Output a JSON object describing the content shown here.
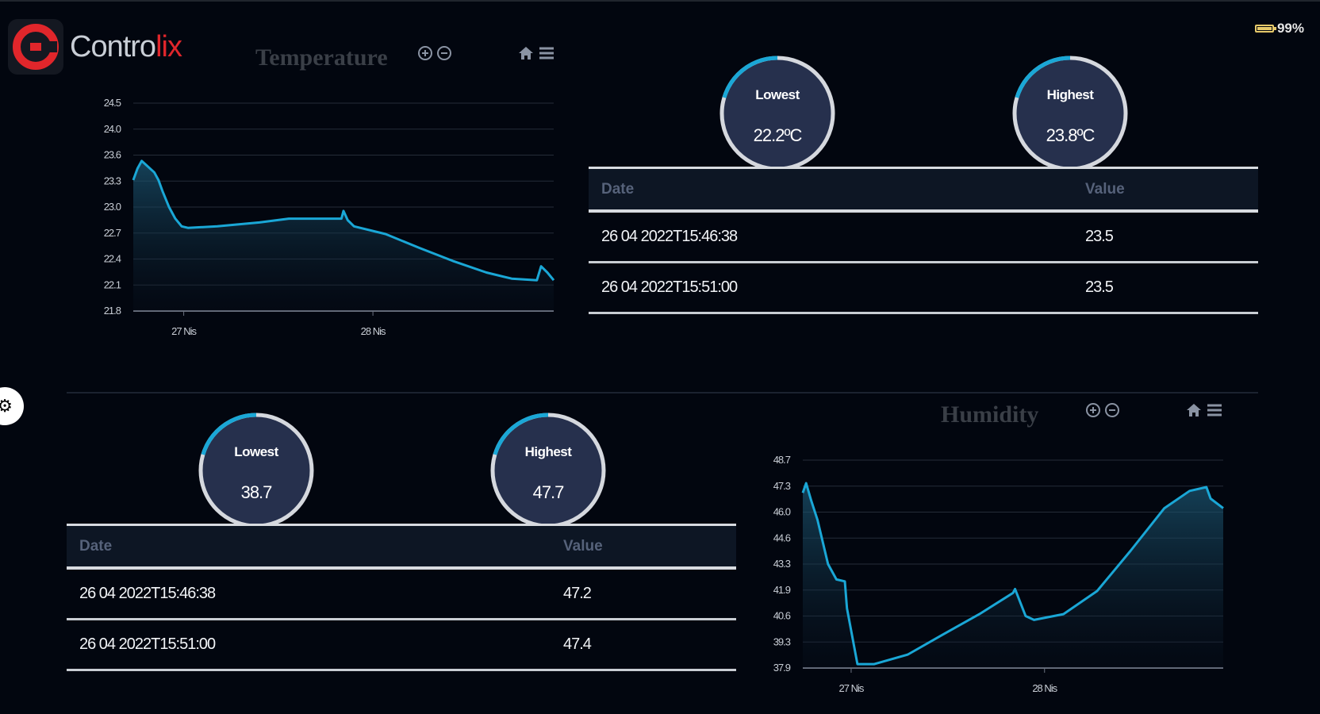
{
  "app": {
    "brand_part1": "Contro",
    "brand_part2": "lix",
    "battery": "99%"
  },
  "colors": {
    "accent": "#1aa7d6",
    "brand_red": "#e0262b",
    "background": "#02060f"
  },
  "temperature": {
    "title": "Temperature",
    "lowest": {
      "label": "Lowest",
      "value": "22.2ºC"
    },
    "highest": {
      "label": "Highest",
      "value": "23.8ºC"
    },
    "table": {
      "col_date": "Date",
      "col_value": "Value",
      "rows": [
        {
          "date": "26 04 2022T15:46:38",
          "value": "23.5"
        },
        {
          "date": "26 04 2022T15:51:00",
          "value": "23.5"
        }
      ]
    }
  },
  "humidity": {
    "title": "Humidity",
    "lowest": {
      "label": "Lowest",
      "value": "38.7"
    },
    "highest": {
      "label": "Highest",
      "value": "47.7"
    },
    "table": {
      "col_date": "Date",
      "col_value": "Value",
      "rows": [
        {
          "date": "26 04 2022T15:46:38",
          "value": "47.2"
        },
        {
          "date": "26 04 2022T15:51:00",
          "value": "47.4"
        }
      ]
    }
  },
  "chart_data": [
    {
      "type": "area",
      "title": "Temperature",
      "y_ticks": [
        "24.5",
        "24.0",
        "23.6",
        "23.3",
        "23.0",
        "22.7",
        "22.4",
        "22.1",
        "21.8"
      ],
      "ylim": [
        21.8,
        24.5
      ],
      "x_ticks": [
        {
          "label": "27 Nis",
          "t": 0.12
        },
        {
          "label": "28 Nis",
          "t": 0.57
        }
      ],
      "series": [
        {
          "name": "Temperature",
          "points": [
            [
              0,
              23.5
            ],
            [
              0.01,
              23.65
            ],
            [
              0.02,
              23.75
            ],
            [
              0.03,
              23.7
            ],
            [
              0.05,
              23.6
            ],
            [
              0.06,
              23.5
            ],
            [
              0.07,
              23.35
            ],
            [
              0.085,
              23.15
            ],
            [
              0.1,
              23.0
            ],
            [
              0.115,
              22.9
            ],
            [
              0.13,
              22.88
            ],
            [
              0.2,
              22.9
            ],
            [
              0.3,
              22.95
            ],
            [
              0.37,
              23.0
            ],
            [
              0.495,
              23.0
            ],
            [
              0.5,
              23.1
            ],
            [
              0.51,
              22.98
            ],
            [
              0.525,
              22.9
            ],
            [
              0.6,
              22.8
            ],
            [
              0.68,
              22.62
            ],
            [
              0.76,
              22.45
            ],
            [
              0.84,
              22.3
            ],
            [
              0.9,
              22.22
            ],
            [
              0.96,
              22.2
            ],
            [
              0.97,
              22.38
            ],
            [
              0.985,
              22.3
            ],
            [
              1.0,
              22.2
            ]
          ]
        }
      ]
    },
    {
      "type": "area",
      "title": "Humidity",
      "y_ticks": [
        "48.7",
        "47.3",
        "46.0",
        "44.6",
        "43.3",
        "41.9",
        "40.6",
        "39.3",
        "37.9"
      ],
      "ylim": [
        37.9,
        48.7
      ],
      "x_ticks": [
        {
          "label": "27 Nis",
          "t": 0.115
        },
        {
          "label": "28 Nis",
          "t": 0.575
        }
      ],
      "series": [
        {
          "name": "Humidity",
          "points": [
            [
              0,
              47.0
            ],
            [
              0.008,
              47.5
            ],
            [
              0.02,
              46.6
            ],
            [
              0.035,
              45.6
            ],
            [
              0.06,
              43.3
            ],
            [
              0.08,
              42.5
            ],
            [
              0.1,
              42.4
            ],
            [
              0.105,
              41.0
            ],
            [
              0.13,
              38.1
            ],
            [
              0.17,
              38.1
            ],
            [
              0.25,
              38.6
            ],
            [
              0.33,
              39.6
            ],
            [
              0.42,
              40.7
            ],
            [
              0.5,
              41.8
            ],
            [
              0.505,
              42.0
            ],
            [
              0.53,
              40.6
            ],
            [
              0.55,
              40.4
            ],
            [
              0.62,
              40.7
            ],
            [
              0.7,
              41.9
            ],
            [
              0.78,
              44.0
            ],
            [
              0.86,
              46.2
            ],
            [
              0.92,
              47.1
            ],
            [
              0.96,
              47.3
            ],
            [
              0.97,
              46.7
            ],
            [
              1.0,
              46.2
            ]
          ]
        }
      ]
    }
  ]
}
